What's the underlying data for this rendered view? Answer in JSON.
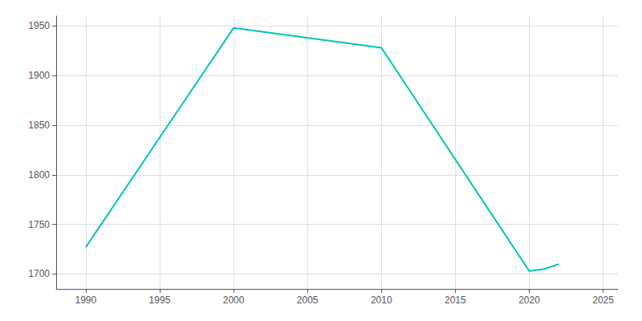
{
  "chart_data": {
    "type": "line",
    "x": [
      1990,
      2000,
      2010,
      2020,
      2021,
      2022
    ],
    "values": [
      1727,
      1948,
      1928,
      1703,
      1705,
      1710
    ],
    "color": "#00C4B4",
    "xlim": [
      1988,
      2026
    ],
    "ylim": [
      1685,
      1960
    ],
    "xticks": [
      1990,
      1995,
      2000,
      2005,
      2010,
      2015,
      2020,
      2025
    ],
    "yticks": [
      1700,
      1750,
      1800,
      1850,
      1900,
      1950
    ],
    "grid": true
  }
}
